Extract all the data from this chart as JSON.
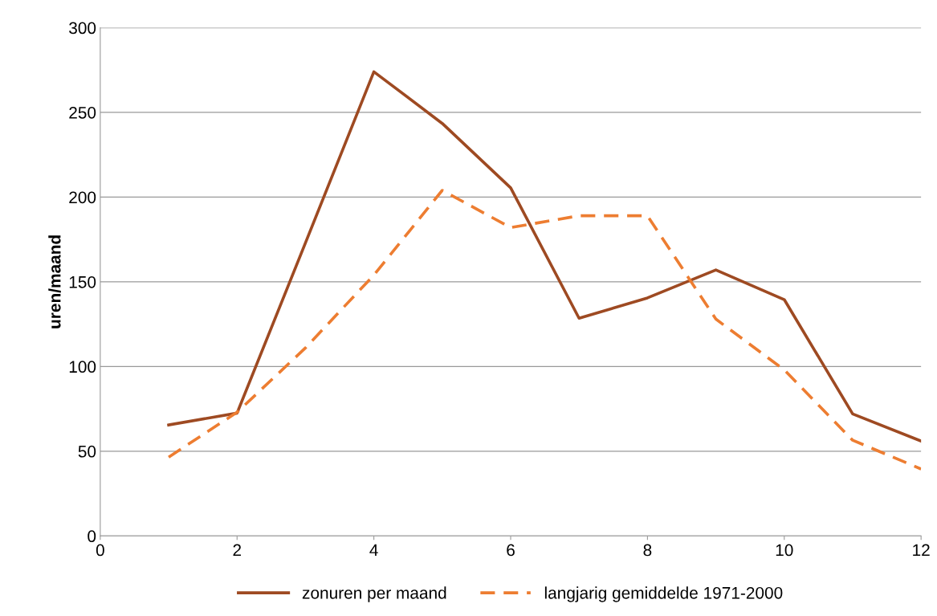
{
  "chart_data": {
    "type": "line",
    "ylabel": "uren/maand",
    "x": [
      1,
      2,
      3,
      4,
      5,
      6,
      7,
      8,
      9,
      10,
      11,
      12
    ],
    "series": [
      {
        "name": "zonuren per maand",
        "color": "#9e4a22",
        "line_style": "solid",
        "values": [
          65.5,
          72.5,
          173,
          274,
          243.5,
          205.5,
          128.5,
          140.5,
          157,
          139.5,
          72,
          56
        ]
      },
      {
        "name": "langjarig gemiddelde 1971-2000",
        "color": "#ed7d31",
        "line_style": "dashed",
        "values": [
          46.5,
          73,
          111,
          154,
          204,
          182,
          189,
          189,
          128,
          98,
          56.5,
          39.5
        ]
      }
    ],
    "xlim": [
      0,
      12
    ],
    "xticks": [
      0,
      2,
      4,
      6,
      8,
      10,
      12
    ],
    "ylim": [
      0,
      300
    ],
    "yticks": [
      0,
      50,
      100,
      150,
      200,
      250,
      300
    ],
    "grid": "y",
    "legend": "bottom",
    "marker": "none"
  }
}
